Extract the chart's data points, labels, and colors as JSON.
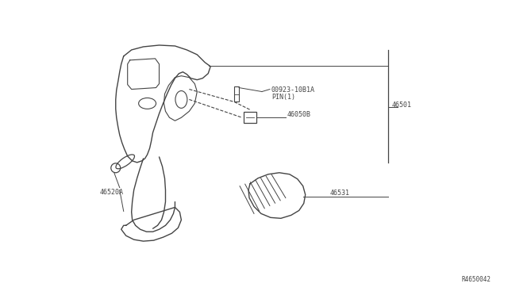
{
  "background_color": "#ffffff",
  "line_color": "#444444",
  "text_color": "#444444",
  "fig_width": 6.4,
  "fig_height": 3.72,
  "dpi": 100,
  "watermark": "R4650042",
  "label_pin_text1": "00923-10B1A",
  "label_pin_text2": "PIN(1)",
  "label_46050B": "46050B",
  "label_46501": "46501",
  "label_46520A": "46520A",
  "label_46531": "46531",
  "fs": 6.0
}
